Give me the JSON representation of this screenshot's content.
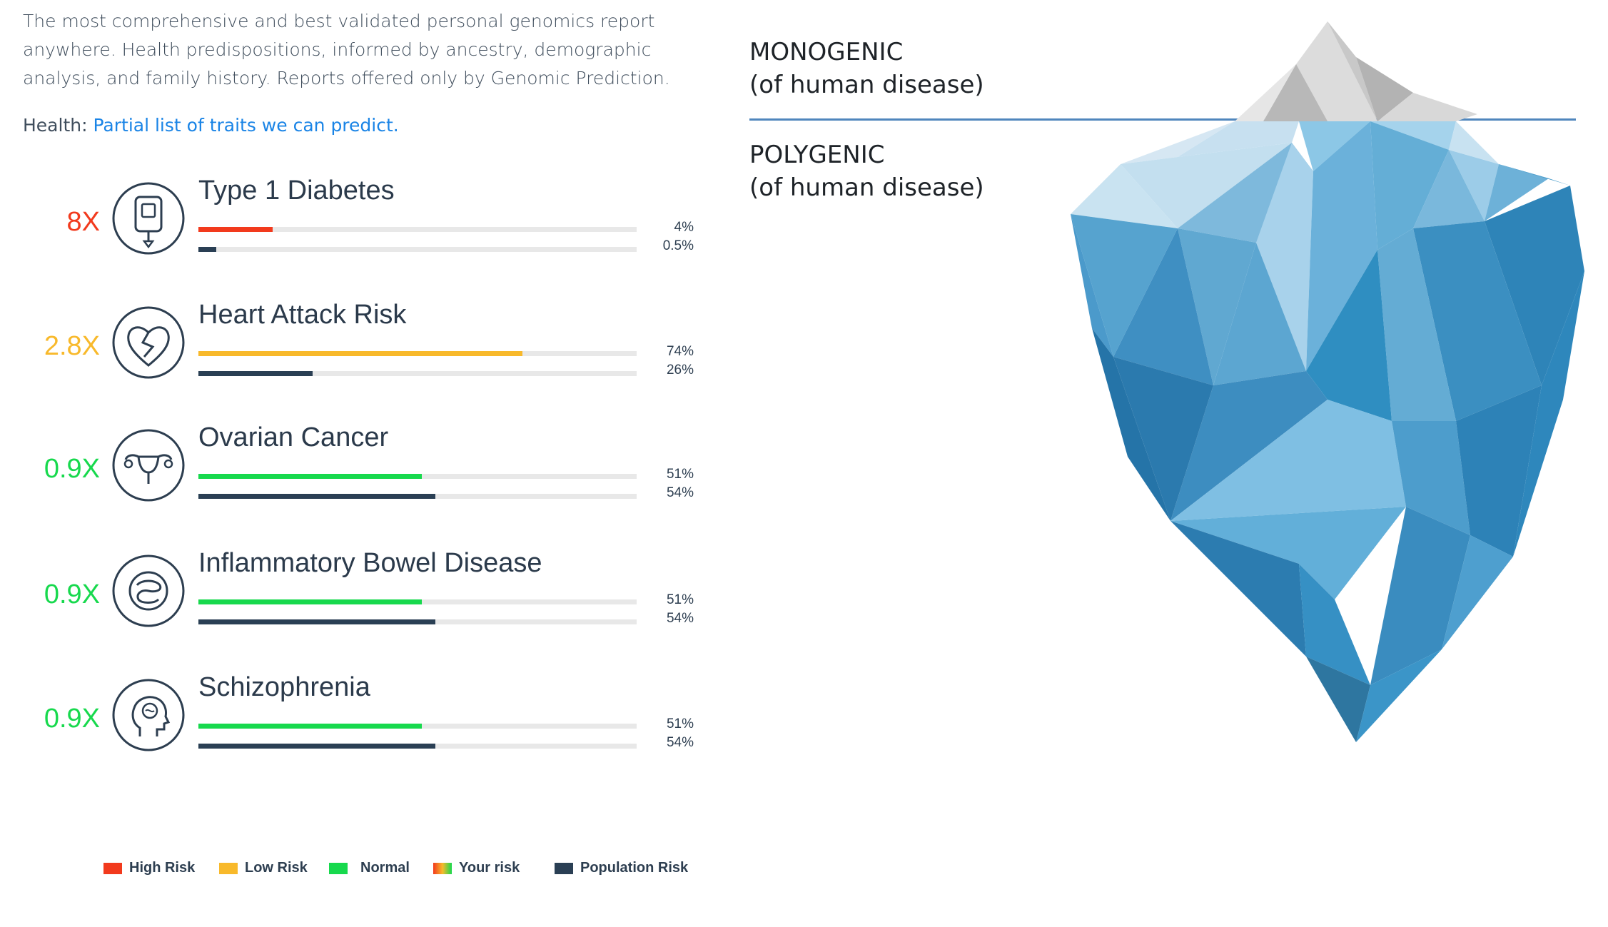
{
  "intro_text": "The most comprehensive and best validated personal genomics report anywhere. Health predispositions, informed by ancestry, demographic analysis, and family history. Reports offered only by Genomic Prediction.",
  "health": {
    "label": "Health:",
    "link_text": "Partial list of traits we can predict."
  },
  "traits": [
    {
      "name": "Type 1 Diabetes",
      "multiplier": "8X",
      "multiplier_color": "#f23a1d",
      "your_risk_pct": "4%",
      "population_risk_pct": "0.5%",
      "your_risk": 4,
      "population_risk": 0.5,
      "your_color": "#f23a1d",
      "icon": "insulin-pump-icon"
    },
    {
      "name": "Heart Attack Risk",
      "multiplier": "2.8X",
      "multiplier_color": "#f8b92b",
      "your_risk_pct": "74%",
      "population_risk_pct": "26%",
      "your_risk": 74,
      "population_risk": 26,
      "your_color": "#f8b92b",
      "icon": "broken-heart-icon"
    },
    {
      "name": "Ovarian Cancer",
      "multiplier": "0.9X",
      "multiplier_color": "#17d94d",
      "your_risk_pct": "51%",
      "population_risk_pct": "54%",
      "your_risk": 51,
      "population_risk": 54,
      "your_color": "#17d94d",
      "icon": "uterus-icon"
    },
    {
      "name": "Inflammatory Bowel Disease",
      "multiplier": "0.9X",
      "multiplier_color": "#17d94d",
      "your_risk_pct": "51%",
      "population_risk_pct": "54%",
      "your_risk": 51,
      "population_risk": 54,
      "your_color": "#17d94d",
      "icon": "intestines-icon"
    },
    {
      "name": "Schizophrenia",
      "multiplier": "0.9X",
      "multiplier_color": "#17d94d",
      "your_risk_pct": "51%",
      "population_risk_pct": "54%",
      "your_risk": 51,
      "population_risk": 54,
      "your_color": "#17d94d",
      "icon": "head-brain-icon"
    }
  ],
  "population_color": "#2a3f54",
  "legend": [
    {
      "label": "High Risk",
      "color": "#f23a1d"
    },
    {
      "label": "Low Risk",
      "color": "#f8b92b"
    },
    {
      "label": "Normal",
      "color": "#17d94d"
    },
    {
      "label": "Your risk",
      "color": "gradient"
    },
    {
      "label": "Population Risk",
      "color": "#2a3f54"
    }
  ],
  "iceberg": {
    "top_label_1": "MONOGENIC",
    "top_label_2": "(of human disease)",
    "bottom_label_1": "POLYGENIC",
    "bottom_label_2": "(of human disease)",
    "waterline_color": "#4f86bd"
  }
}
